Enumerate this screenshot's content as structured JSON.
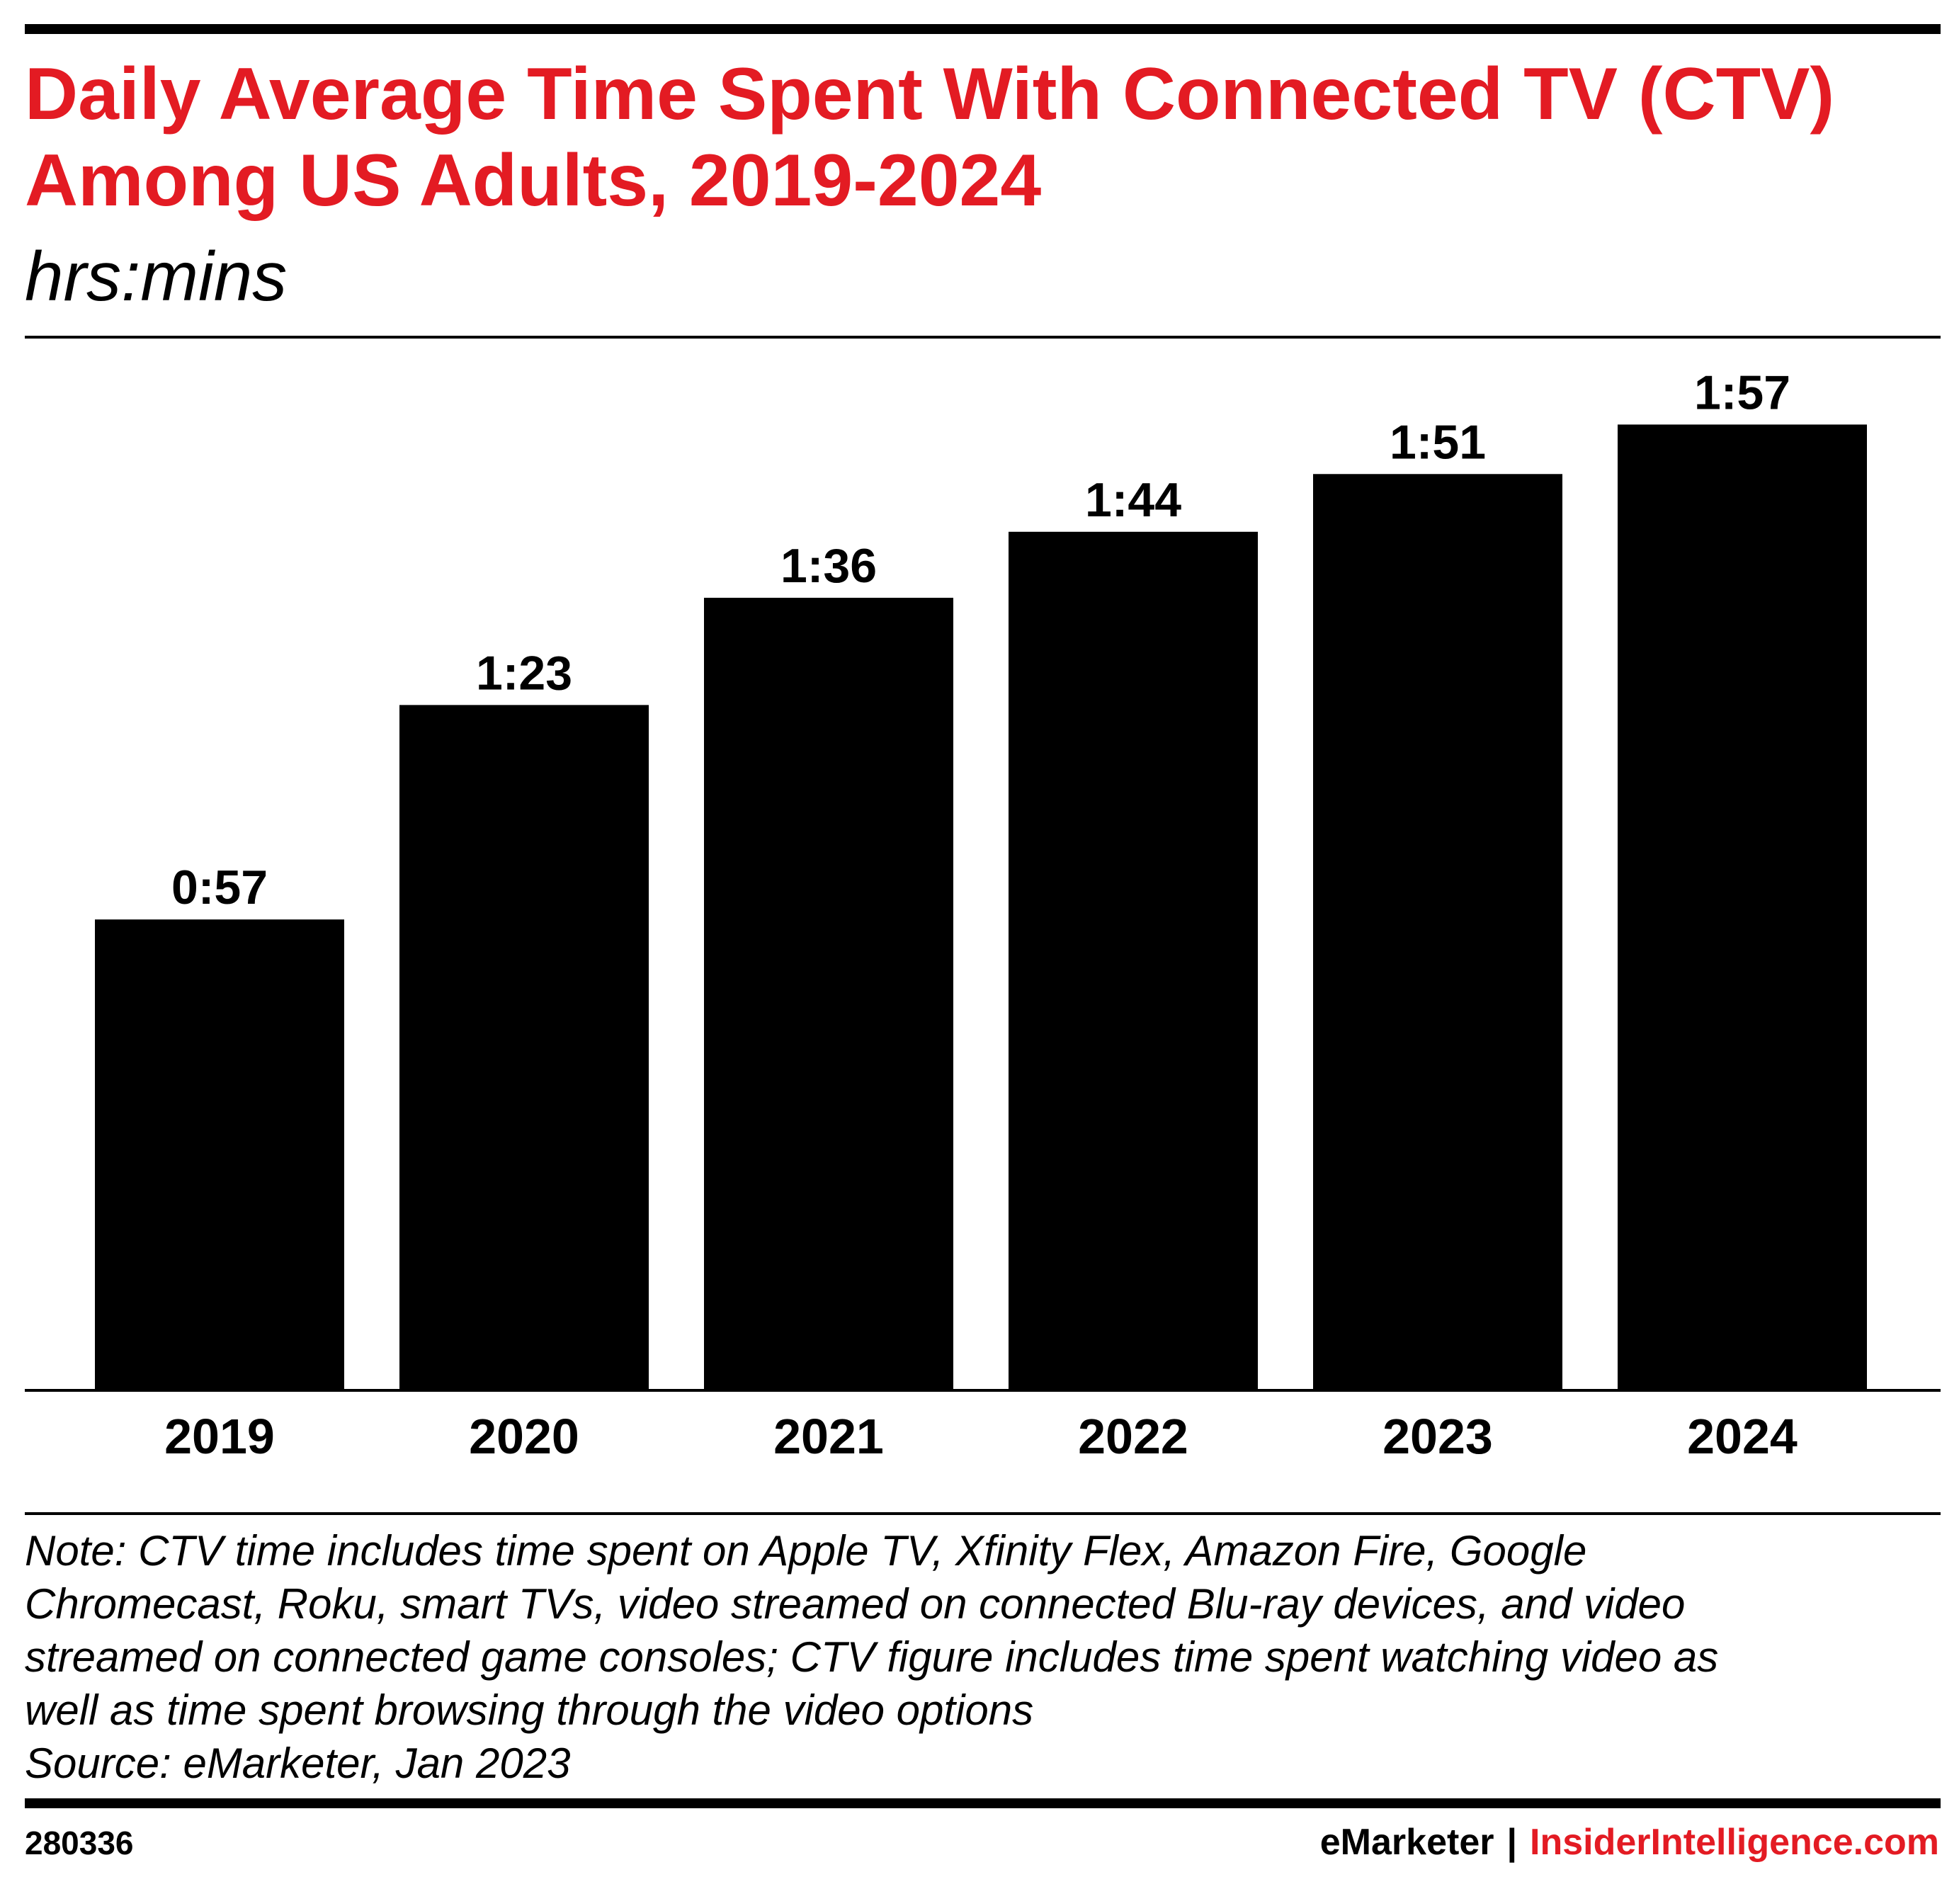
{
  "title": "Daily Average Time Spent With Connected TV (CTV) Among US Adults, 2019-2024",
  "subtitle": "hrs:mins",
  "chart_data": {
    "type": "bar",
    "title": "Daily Average Time Spent With Connected TV (CTV) Among US Adults, 2019-2024",
    "ylabel": "hrs:mins",
    "xlabel": "",
    "categories": [
      "2019",
      "2020",
      "2021",
      "2022",
      "2023",
      "2024"
    ],
    "values_minutes": [
      57,
      83,
      96,
      104,
      111,
      117
    ],
    "labels": [
      "0:57",
      "1:23",
      "1:36",
      "1:44",
      "1:51",
      "1:57"
    ],
    "ylim": [
      0,
      130
    ],
    "grid": false,
    "bar_color": "#000000"
  },
  "note": "Note: CTV time includes time spent on Apple TV, Xfinity Flex, Amazon Fire, Google\nChromecast, Roku, smart TVs, video streamed on connected Blu-ray devices, and video\nstreamed on connected game consoles; CTV figure includes time spent watching video as\nwell as time spent browsing through the video options",
  "source": "Source: eMarketer, Jan 2023",
  "chart_id": "280336",
  "brand": {
    "left": "eMarketer",
    "separator": "|",
    "right": "InsiderIntelligence.com",
    "right_color": "#e31b23"
  },
  "colors": {
    "accent": "#e31b23",
    "text": "#000000"
  }
}
